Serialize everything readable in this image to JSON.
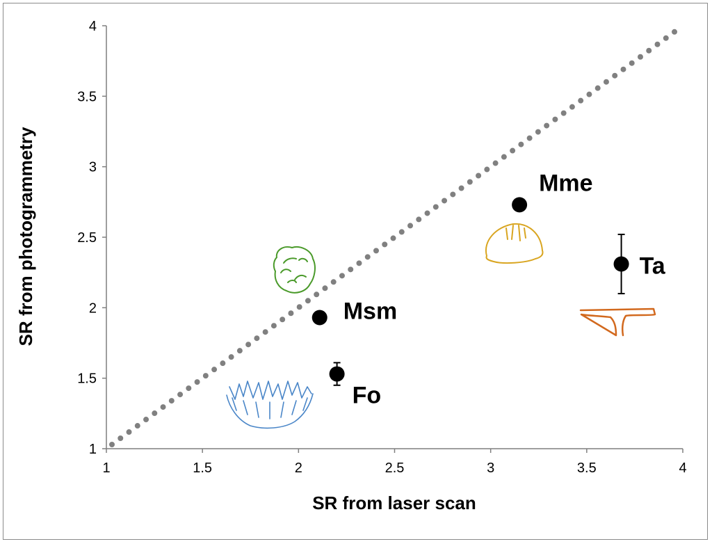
{
  "chart_data": {
    "type": "scatter",
    "xlabel": "SR from laser scan",
    "ylabel": "SR from photogrammetry",
    "xlim": [
      1,
      4
    ],
    "ylim": [
      1,
      4
    ],
    "xticks": [
      "1",
      "1.5",
      "2",
      "2.5",
      "3",
      "3.5",
      "4"
    ],
    "yticks": [
      "1",
      "1.5",
      "2",
      "2.5",
      "3",
      "3.5",
      "4"
    ],
    "grid": false,
    "reference_line": {
      "style": "dotted",
      "color": "#808080",
      "from": [
        1,
        1
      ],
      "to": [
        4,
        4
      ]
    },
    "points": [
      {
        "label": "Mme",
        "x": 3.15,
        "y": 2.73,
        "err": null
      },
      {
        "label": "Ta",
        "x": 3.68,
        "y": 2.31,
        "err": 0.21
      },
      {
        "label": "Msm",
        "x": 2.11,
        "y": 1.93,
        "err": null
      },
      {
        "label": "Fo",
        "x": 2.2,
        "y": 1.53,
        "err": 0.08
      }
    ],
    "icon_colors": {
      "Mme": "#d9a520",
      "Ta": "#d2691e",
      "Msm": "#4a9a2a",
      "Fo": "#4a86c8"
    }
  }
}
